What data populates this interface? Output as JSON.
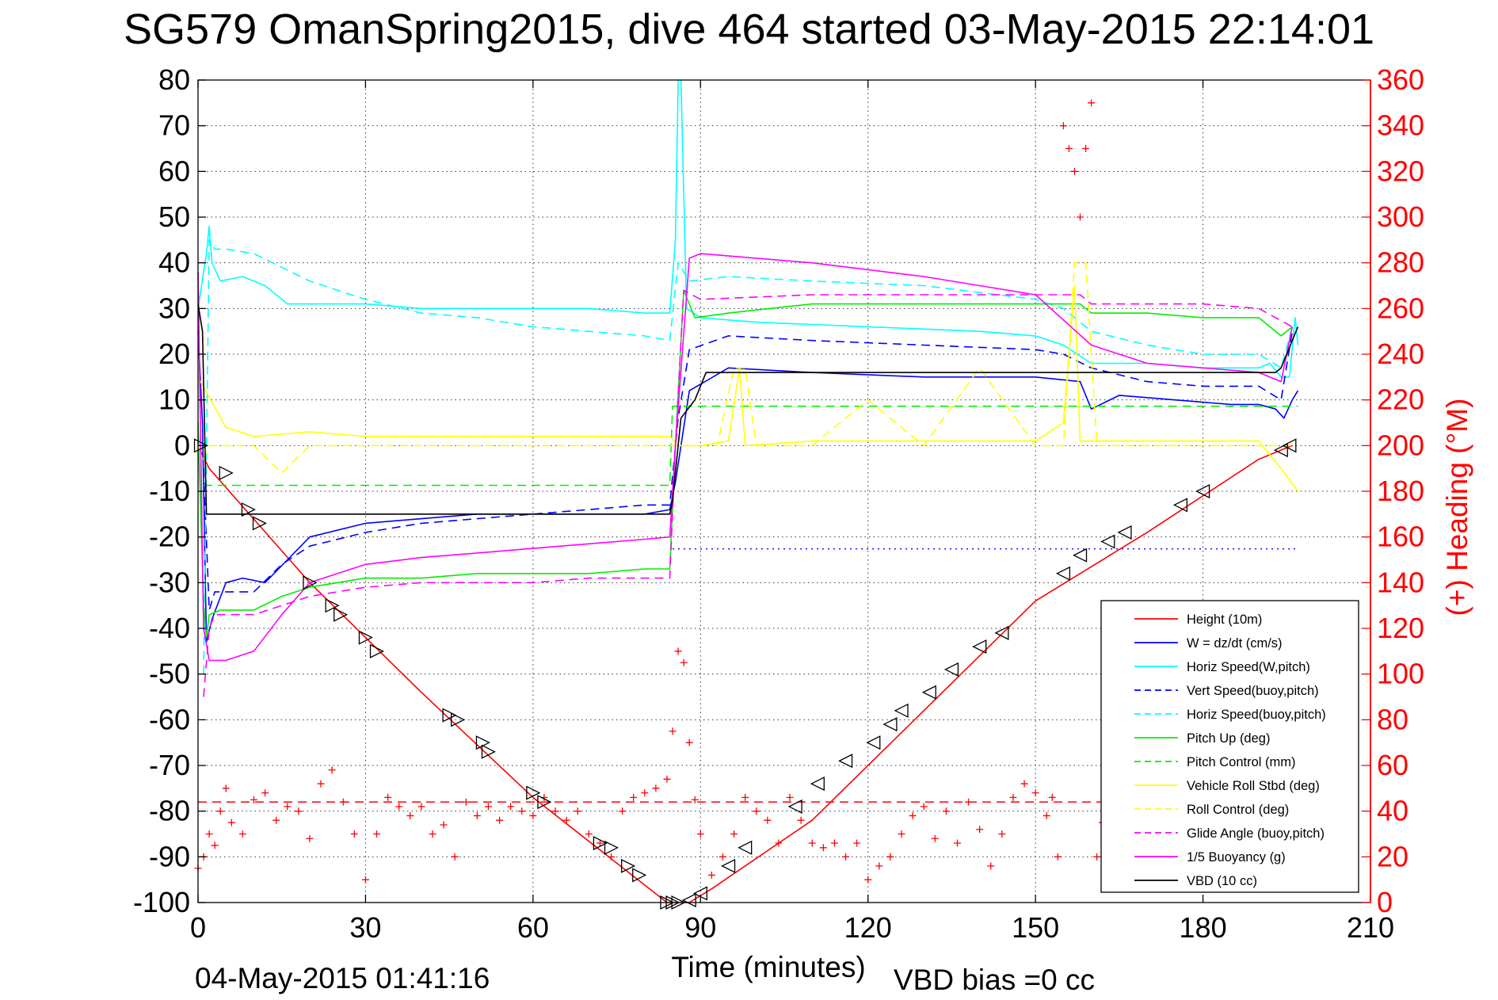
{
  "chart_data": {
    "type": "line",
    "title": "SG579 OmanSpring2015, dive 464 started 03-May-2015 22:14:01",
    "xlabel": "Time (minutes)",
    "ylabel_right": "(+) Heading (°M)",
    "xlim": [
      0,
      210
    ],
    "ylim": [
      -100,
      80
    ],
    "ylim_right": [
      0,
      360
    ],
    "xticks": [
      0,
      30,
      60,
      90,
      120,
      150,
      180,
      210
    ],
    "yticks": [
      80,
      70,
      60,
      50,
      40,
      30,
      20,
      10,
      0,
      -10,
      -20,
      -30,
      -40,
      -50,
      -60,
      -70,
      -80,
      -90,
      -100
    ],
    "yticks_right": [
      360,
      340,
      320,
      300,
      280,
      260,
      240,
      220,
      200,
      180,
      160,
      140,
      120,
      100,
      80,
      60,
      40,
      20,
      0
    ],
    "grid": true,
    "legend_position": "bottom-right",
    "colors": {
      "red": "#ff0000",
      "blue": "#0000ff",
      "cyan": "#00ffff",
      "green": "#00ee00",
      "yellow": "#ffff00",
      "magenta": "#ff00ff",
      "black": "#000000"
    },
    "series": [
      {
        "name": "Height (10m)",
        "color": "#ff0000",
        "style": "solid",
        "x": [
          0,
          2,
          20,
          40,
          60,
          84,
          88,
          92,
          110,
          130,
          150,
          170,
          190,
          196
        ],
        "y": [
          0,
          -5,
          -30,
          -54,
          -77,
          -100,
          -100,
          -97,
          -82,
          -58,
          -34,
          -19,
          -3,
          0
        ]
      },
      {
        "name": "W = dz/dt (cm/s)",
        "color": "#0000ff",
        "style": "solid",
        "x": [
          0,
          0.8,
          1.5,
          2.5,
          5,
          8,
          12,
          16,
          20,
          30,
          40,
          50,
          60,
          70,
          80,
          84.5,
          85.5,
          88,
          95,
          110,
          130,
          150,
          158,
          160,
          165,
          175,
          185,
          190,
          193,
          194.5,
          196,
          197
        ],
        "y": [
          25,
          5,
          -43,
          -38,
          -30,
          -29,
          -30,
          -25,
          -20,
          -17,
          -16,
          -15,
          -15,
          -15,
          -15,
          -14,
          -8,
          12,
          17,
          16,
          15,
          15,
          14,
          8,
          11,
          10,
          9,
          9,
          8,
          6,
          10,
          12
        ]
      },
      {
        "name": "Horiz Speed(W,pitch)",
        "color": "#00ffff",
        "style": "solid",
        "x": [
          0,
          1.5,
          2,
          2.5,
          4,
          8,
          12,
          16,
          20,
          30,
          40,
          50,
          60,
          70,
          80,
          84.5,
          85.5,
          86,
          86.5,
          87.5,
          90,
          100,
          120,
          140,
          150,
          155,
          160,
          170,
          180,
          190,
          192,
          194,
          195.5,
          196.5,
          197
        ],
        "y": [
          30,
          42,
          48,
          40,
          36,
          37,
          35,
          31,
          31,
          31,
          30,
          30,
          30,
          30,
          29,
          29,
          45,
          80,
          80,
          30,
          28,
          27,
          26,
          25,
          24,
          22,
          18,
          18,
          17,
          17,
          18,
          15,
          15,
          28,
          22
        ]
      },
      {
        "name": "Vert Speed(buoy,pitch)",
        "color": "#0000ff",
        "style": "dashed",
        "x": [
          1,
          2,
          3,
          5,
          10,
          15,
          20,
          30,
          40,
          50,
          60,
          70,
          80,
          84.5,
          86,
          88,
          95,
          110,
          130,
          150,
          155,
          160,
          170,
          180,
          190,
          194,
          196
        ],
        "y": [
          -5,
          -36,
          -32,
          -32,
          -32,
          -26,
          -22,
          -19,
          -17,
          -16,
          -15,
          -14,
          -13,
          -13,
          6,
          21,
          24,
          23,
          22,
          21,
          20,
          17,
          14,
          13,
          13,
          10,
          25
        ]
      },
      {
        "name": "Horiz Speed(buoy,pitch)",
        "color": "#00ffff",
        "style": "dashed",
        "x": [
          1,
          2,
          3,
          5,
          10,
          20,
          30,
          40,
          50,
          60,
          70,
          80,
          84.5,
          86,
          88,
          95,
          110,
          130,
          150,
          155,
          160,
          170,
          180,
          190,
          194,
          196
        ],
        "y": [
          -50,
          45,
          43,
          43,
          42,
          36,
          32,
          29,
          28,
          26,
          25,
          24,
          23,
          40,
          36,
          37,
          36,
          35,
          32,
          30,
          25,
          22,
          20,
          20,
          17,
          26
        ]
      },
      {
        "name": "Pitch Up (deg)",
        "color": "#00ee00",
        "style": "solid",
        "x": [
          0,
          1,
          1.5,
          2,
          4,
          10,
          15,
          20,
          30,
          40,
          50,
          60,
          70,
          80,
          84.5,
          85.5,
          87,
          89,
          95,
          110,
          130,
          150,
          158,
          160,
          170,
          180,
          190,
          194,
          196
        ],
        "y": [
          5,
          -35,
          -42,
          -37,
          -36,
          -36,
          -33,
          -31,
          -29,
          -29,
          -28,
          -28,
          -28,
          -27,
          -27,
          0,
          34,
          28,
          29,
          31,
          31,
          31,
          31,
          29,
          29,
          28,
          28,
          24,
          26
        ]
      },
      {
        "name": "Pitch Control (mm)",
        "color": "#00ee00",
        "style": "dashed",
        "x": [
          1,
          2,
          84.5,
          85,
          91,
          197
        ],
        "y": [
          -8.7,
          -8.7,
          -8.7,
          8.6,
          8.6,
          8.6
        ]
      },
      {
        "name": "Vehicle Roll Stbd (deg)",
        "color": "#ffff00",
        "style": "solid",
        "x": [
          0,
          5,
          10,
          20,
          30,
          40,
          50,
          60,
          70,
          80,
          84.5,
          86,
          90,
          95,
          97,
          98,
          110,
          130,
          150,
          155,
          157,
          158,
          160,
          170,
          180,
          190,
          194,
          197
        ],
        "y": [
          15,
          4,
          2,
          3,
          2,
          2,
          2,
          2,
          2,
          2,
          2,
          0,
          0,
          1,
          17,
          0,
          1,
          1,
          1,
          5,
          35,
          1,
          1,
          1,
          1,
          1,
          -5,
          -10
        ]
      },
      {
        "name": "Roll Control (deg)",
        "color": "#ffff00",
        "style": "dashed",
        "x": [
          0,
          1,
          2,
          10,
          15,
          20,
          25,
          30,
          40,
          50,
          60,
          70,
          80,
          84,
          86,
          90,
          92,
          93,
          96,
          98,
          100,
          110,
          120,
          130,
          140,
          150,
          155,
          157,
          159,
          161,
          170,
          180,
          190,
          194,
          196,
          197
        ],
        "y": [
          0,
          -3,
          0,
          0,
          -6,
          0,
          0,
          0,
          0,
          0,
          0,
          0,
          0,
          0,
          0,
          0,
          0,
          0,
          17,
          17,
          0,
          0,
          10,
          0,
          17,
          0,
          0,
          40,
          40,
          0,
          0,
          0,
          0,
          0,
          0,
          0
        ]
      },
      {
        "name": "Glide Angle (buoy,pitch)",
        "color": "#ff00ff",
        "style": "dashed",
        "x": [
          1,
          2,
          3,
          5,
          10,
          15,
          20,
          30,
          40,
          50,
          60,
          70,
          80,
          84.5,
          85.5,
          87,
          90,
          110,
          130,
          150,
          158,
          160,
          170,
          180,
          190,
          193,
          196
        ],
        "y": [
          -55,
          -40,
          -37,
          -37,
          -37,
          -35,
          -33,
          -31,
          -30,
          -30,
          -30,
          -29,
          -29,
          -29,
          0,
          34,
          32,
          33,
          33,
          33,
          33,
          31,
          31,
          31,
          30,
          28,
          26
        ]
      },
      {
        "name": "1/5 Buoyancy (g)",
        "color": "#ff00ff",
        "style": "solid",
        "x": [
          0,
          1,
          2,
          3,
          5,
          10,
          15,
          20,
          30,
          40,
          50,
          60,
          70,
          80,
          84.5,
          85.5,
          88,
          90,
          110,
          130,
          140,
          150,
          160,
          170,
          180,
          190,
          194,
          196
        ],
        "y": [
          38,
          -40,
          -47,
          -47,
          -47,
          -45,
          -37,
          -30,
          -26,
          -24.5,
          -23.5,
          -22.5,
          -21.5,
          -20.5,
          -20,
          0,
          41,
          42,
          40,
          37,
          35,
          33,
          22,
          18,
          17,
          16,
          14,
          26
        ]
      },
      {
        "name": "VBD (10 cc)",
        "color": "#000000",
        "style": "solid",
        "x": [
          0,
          0.8,
          1.5,
          84.5,
          85,
          86.5,
          89,
          91,
          157,
          157.5,
          193,
          194,
          196,
          197
        ],
        "y": [
          31,
          25,
          -15,
          -15,
          -12,
          6,
          10,
          16,
          16,
          16,
          16,
          17,
          23,
          26
        ]
      }
    ],
    "reference_lines": [
      {
        "color": "#0000ff",
        "style": "dotted",
        "y": -22.6,
        "x_start": 85,
        "x_end": 197
      },
      {
        "color": "#ff0000",
        "style": "dashed",
        "y": -78,
        "x_start": 0,
        "x_end": 197
      }
    ],
    "heading_points": {
      "axis": "right",
      "marker": "+",
      "color": "#ff0000",
      "x": [
        0,
        1,
        2,
        3,
        4,
        5,
        6,
        8,
        10,
        12,
        14,
        16,
        18,
        20,
        22,
        24,
        26,
        28,
        30,
        32,
        34,
        36,
        38,
        40,
        42,
        44,
        46,
        48,
        50,
        52,
        54,
        56,
        58,
        60,
        62,
        64,
        66,
        68,
        70,
        72,
        74,
        76,
        78,
        80,
        82,
        84,
        85,
        86,
        87,
        88,
        89,
        90,
        92,
        94,
        96,
        98,
        100,
        102,
        104,
        106,
        108,
        110,
        112,
        114,
        116,
        118,
        120,
        122,
        124,
        126,
        128,
        130,
        132,
        134,
        136,
        138,
        140,
        142,
        144,
        146,
        148,
        150,
        152,
        153,
        154,
        155,
        156,
        157,
        158,
        159,
        160,
        161,
        162,
        163,
        164,
        165,
        167
      ],
      "y": [
        15,
        20,
        30,
        25,
        40,
        50,
        35,
        30,
        45,
        48,
        36,
        42,
        40,
        28,
        52,
        58,
        44,
        30,
        10,
        30,
        46,
        42,
        38,
        42,
        30,
        34,
        20,
        44,
        38,
        42,
        36,
        42,
        40,
        38,
        46,
        40,
        36,
        40,
        30,
        26,
        20,
        40,
        46,
        48,
        50,
        54,
        75,
        110,
        105,
        70,
        45,
        30,
        12,
        20,
        30,
        46,
        40,
        36,
        26,
        46,
        36,
        26,
        24,
        26,
        20,
        26,
        10,
        16,
        20,
        30,
        38,
        42,
        28,
        40,
        26,
        44,
        32,
        16,
        30,
        46,
        52,
        48,
        38,
        46,
        20,
        340,
        330,
        320,
        300,
        330,
        350,
        20,
        35,
        40,
        45,
        20,
        10
      ]
    },
    "markers": {
      "description": "triangle markers along Height (10m)",
      "color": "#000000",
      "x": [
        0.5,
        5,
        9,
        11,
        20,
        24,
        25.5,
        30,
        32,
        45,
        46.5,
        51,
        52,
        60,
        62,
        72,
        74,
        77,
        79,
        84,
        85,
        86,
        88,
        90,
        95,
        98,
        107,
        111,
        116,
        121,
        124,
        126,
        131,
        135,
        140,
        144,
        155,
        158,
        163,
        166,
        176,
        180,
        194,
        195.5
      ],
      "y": [
        0,
        -6,
        -14,
        -17,
        -30,
        -35,
        -37,
        -42,
        -45,
        -59,
        -60,
        -65,
        -67,
        -76,
        -78,
        -87,
        -88,
        -92,
        -94,
        -100,
        -100,
        -100,
        -99.5,
        -98,
        -92,
        -88,
        -79,
        -74,
        -69,
        -65,
        -61,
        -58,
        -54,
        -49,
        -44,
        -41,
        -28,
        -24,
        -21,
        -19,
        -13,
        -10,
        -1,
        0
      ]
    },
    "legend": [
      {
        "label": "Height (10m)",
        "color": "#ff0000",
        "style": "solid"
      },
      {
        "label": "W = dz/dt (cm/s)",
        "color": "#0000ff",
        "style": "solid"
      },
      {
        "label": "Horiz Speed(W,pitch)",
        "color": "#00ffff",
        "style": "solid"
      },
      {
        "label": "Vert Speed(buoy,pitch)",
        "color": "#0000ff",
        "style": "dashed"
      },
      {
        "label": "Horiz Speed(buoy,pitch)",
        "color": "#00ffff",
        "style": "dashed"
      },
      {
        "label": "Pitch Up (deg)",
        "color": "#00ee00",
        "style": "solid"
      },
      {
        "label": "Pitch Control (mm)",
        "color": "#00ee00",
        "style": "dashed"
      },
      {
        "label": "Vehicle Roll Stbd (deg)",
        "color": "#ffff00",
        "style": "solid"
      },
      {
        "label": "Roll Control (deg)",
        "color": "#ffff00",
        "style": "dashed"
      },
      {
        "label": "Glide Angle (buoy,pitch)",
        "color": "#ff00ff",
        "style": "dashed"
      },
      {
        "label": "1/5 Buoyancy (g)",
        "color": "#ff00ff",
        "style": "solid"
      },
      {
        "label": "VBD (10 cc)",
        "color": "#000000",
        "style": "solid"
      }
    ]
  },
  "footer": {
    "end_time": "04-May-2015 01:41:16",
    "vbd_bias": "VBD bias =0 cc"
  }
}
